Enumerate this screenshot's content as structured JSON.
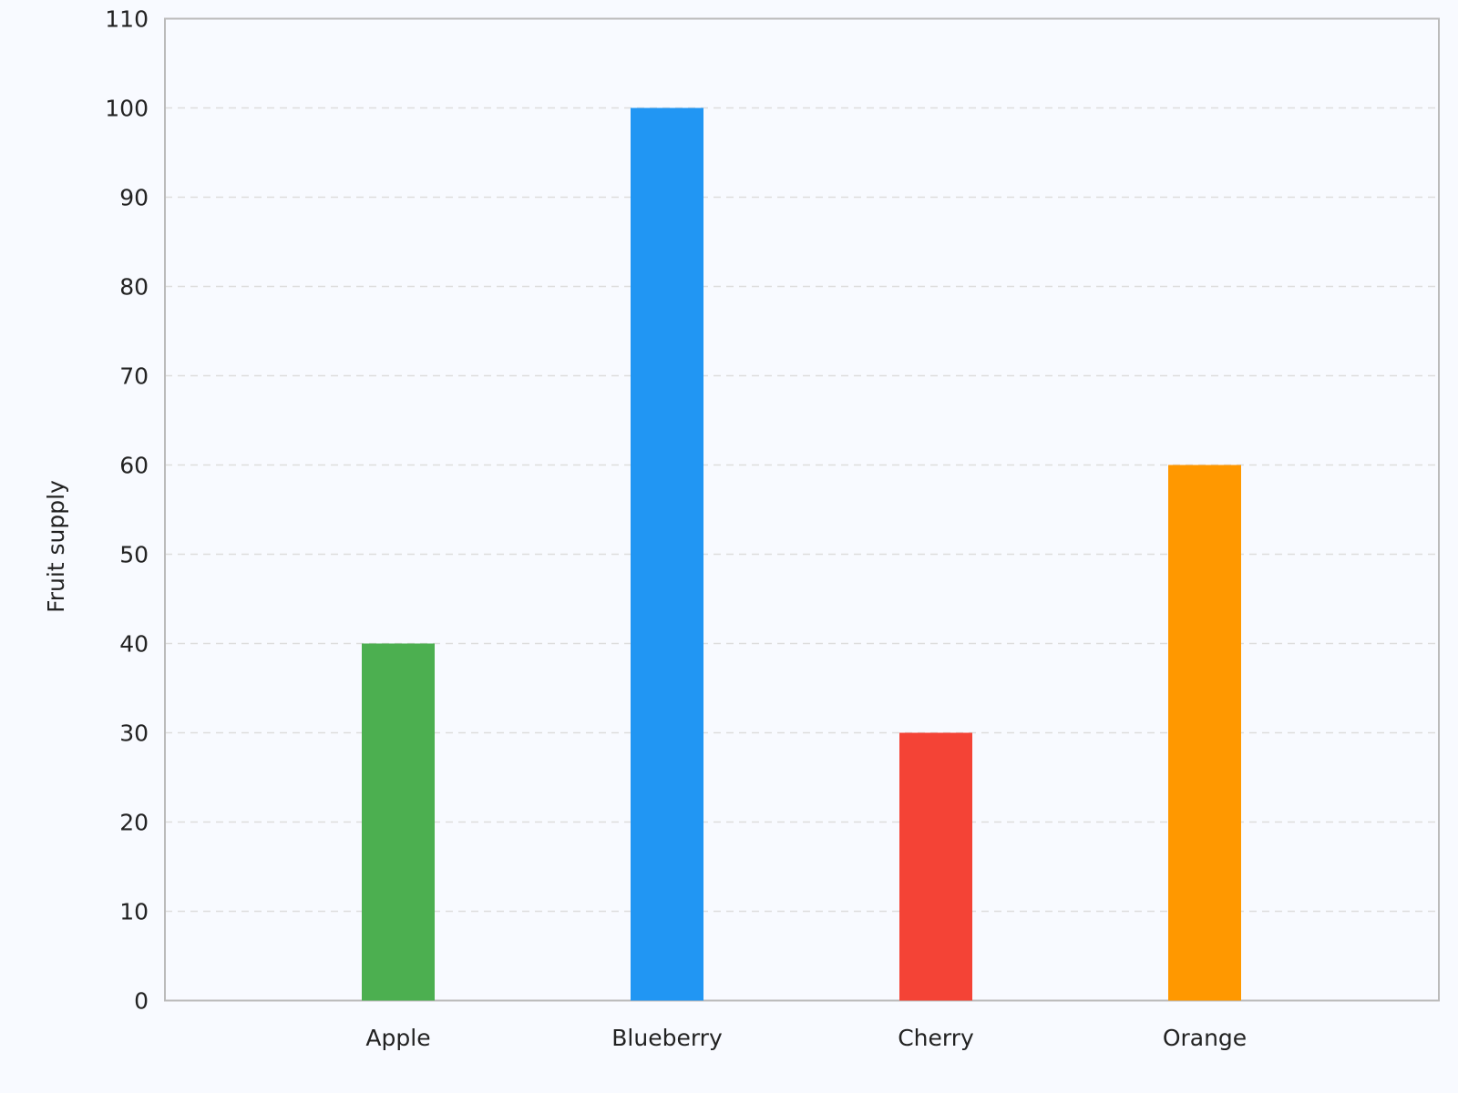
{
  "chart_data": {
    "type": "bar",
    "title": "",
    "xlabel": "",
    "ylabel": "Fruit supply",
    "categories": [
      "Apple",
      "Blueberry",
      "Cherry",
      "Orange"
    ],
    "values": [
      40,
      100,
      30,
      60
    ],
    "colors": [
      "#4CAF50",
      "#2196F3",
      "#F44336",
      "#FF9800"
    ],
    "ylim": [
      0,
      110
    ],
    "yticks": [
      0,
      10,
      20,
      30,
      40,
      50,
      60,
      70,
      80,
      90,
      100,
      110
    ],
    "grid": true,
    "legend": "none"
  }
}
